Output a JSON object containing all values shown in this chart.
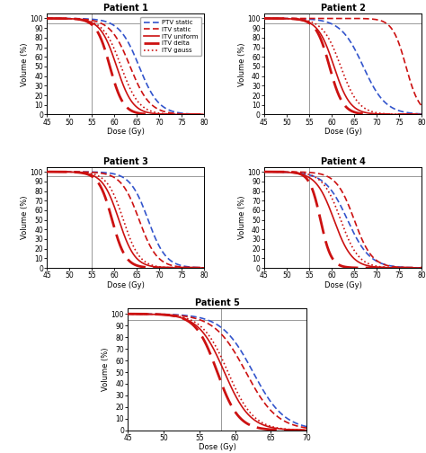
{
  "patients": [
    {
      "title": "Patient 1",
      "vline": 55,
      "hline": 95,
      "xlim": [
        45,
        80
      ],
      "xticks": [
        45,
        50,
        55,
        60,
        65,
        70,
        75,
        80
      ],
      "curves": [
        {
          "name": "PTV_static",
          "x50": 65.5,
          "steep": 2.2,
          "color": "#3355cc",
          "ls": "--",
          "lw": 1.2,
          "dashes": [
            4,
            2
          ]
        },
        {
          "name": "ITV_static",
          "x50": 63.5,
          "steep": 2.2,
          "color": "#cc1111",
          "ls": "--",
          "lw": 1.2,
          "dashes": [
            4,
            2
          ]
        },
        {
          "name": "ITV_uniform",
          "x50": 60.5,
          "steep": 1.8,
          "color": "#cc1111",
          "ls": "-",
          "lw": 1.2
        },
        {
          "name": "ITV_delta",
          "x50": 59.0,
          "steep": 1.5,
          "color": "#cc1111",
          "ls": "--",
          "lw": 2.0,
          "dashes": [
            8,
            3
          ]
        },
        {
          "name": "ITV_gauss",
          "x50": 61.5,
          "steep": 2.0,
          "color": "#cc1111",
          "ls": ":",
          "lw": 1.2
        }
      ]
    },
    {
      "title": "Patient 2",
      "vline": 55,
      "hline": 95,
      "xlim": [
        45,
        80
      ],
      "xticks": [
        45,
        50,
        55,
        60,
        65,
        70,
        75,
        80
      ],
      "curves": [
        {
          "name": "PTV_static",
          "x50": 67.0,
          "steep": 2.5,
          "color": "#3355cc",
          "ls": "--",
          "lw": 1.2,
          "dashes": [
            4,
            2
          ]
        },
        {
          "name": "ITV_static",
          "x50": 76.5,
          "steep": 1.5,
          "color": "#cc1111",
          "ls": "--",
          "lw": 1.2,
          "dashes": [
            4,
            2
          ]
        },
        {
          "name": "ITV_uniform",
          "x50": 60.5,
          "steep": 1.8,
          "color": "#cc1111",
          "ls": "-",
          "lw": 1.2
        },
        {
          "name": "ITV_delta",
          "x50": 59.5,
          "steep": 1.5,
          "color": "#cc1111",
          "ls": "--",
          "lw": 2.0,
          "dashes": [
            8,
            3
          ]
        },
        {
          "name": "ITV_gauss",
          "x50": 62.0,
          "steep": 2.0,
          "color": "#cc1111",
          "ls": ":",
          "lw": 1.2
        }
      ]
    },
    {
      "title": "Patient 3",
      "vline": 55,
      "hline": 95,
      "xlim": [
        45,
        80
      ],
      "xticks": [
        45,
        50,
        55,
        60,
        65,
        70,
        75,
        80
      ],
      "curves": [
        {
          "name": "PTV_static",
          "x50": 67.5,
          "steep": 2.0,
          "color": "#3355cc",
          "ls": "--",
          "lw": 1.2,
          "dashes": [
            4,
            2
          ]
        },
        {
          "name": "ITV_static",
          "x50": 65.5,
          "steep": 2.0,
          "color": "#cc1111",
          "ls": "--",
          "lw": 1.2,
          "dashes": [
            4,
            2
          ]
        },
        {
          "name": "ITV_uniform",
          "x50": 61.0,
          "steep": 1.8,
          "color": "#cc1111",
          "ls": "-",
          "lw": 1.2
        },
        {
          "name": "ITV_delta",
          "x50": 59.5,
          "steep": 1.5,
          "color": "#cc1111",
          "ls": "--",
          "lw": 2.0,
          "dashes": [
            8,
            3
          ]
        },
        {
          "name": "ITV_gauss",
          "x50": 62.0,
          "steep": 1.8,
          "color": "#cc1111",
          "ls": ":",
          "lw": 1.2
        }
      ]
    },
    {
      "title": "Patient 4",
      "vline": 55,
      "hline": 95,
      "xlim": [
        45,
        80
      ],
      "xticks": [
        45,
        50,
        55,
        60,
        65,
        70,
        75,
        80
      ],
      "curves": [
        {
          "name": "PTV_static",
          "x50": 63.5,
          "steep": 2.5,
          "color": "#3355cc",
          "ls": "--",
          "lw": 1.2,
          "dashes": [
            4,
            2
          ]
        },
        {
          "name": "ITV_static",
          "x50": 65.0,
          "steep": 2.0,
          "color": "#cc1111",
          "ls": "--",
          "lw": 1.2,
          "dashes": [
            4,
            2
          ]
        },
        {
          "name": "ITV_uniform",
          "x50": 60.5,
          "steep": 2.0,
          "color": "#cc1111",
          "ls": "-",
          "lw": 1.2
        },
        {
          "name": "ITV_delta",
          "x50": 57.5,
          "steep": 1.2,
          "color": "#cc1111",
          "ls": "--",
          "lw": 2.0,
          "dashes": [
            8,
            3
          ]
        },
        {
          "name": "ITV_gauss",
          "x50": 62.0,
          "steep": 2.0,
          "color": "#cc1111",
          "ls": ":",
          "lw": 1.2
        }
      ]
    },
    {
      "title": "Patient 5",
      "vline": 58,
      "hline": 95,
      "xlim": [
        45,
        70
      ],
      "xticks": [
        45,
        50,
        55,
        60,
        65,
        70
      ],
      "curves": [
        {
          "name": "PTV_static",
          "x50": 62.5,
          "steep": 2.2,
          "color": "#3355cc",
          "ls": "--",
          "lw": 1.2,
          "dashes": [
            4,
            2
          ]
        },
        {
          "name": "ITV_static",
          "x50": 61.5,
          "steep": 2.2,
          "color": "#cc1111",
          "ls": "--",
          "lw": 1.2,
          "dashes": [
            4,
            2
          ]
        },
        {
          "name": "ITV_uniform",
          "x50": 58.5,
          "steep": 1.8,
          "color": "#cc1111",
          "ls": "-",
          "lw": 1.2
        },
        {
          "name": "ITV_delta",
          "x50": 57.5,
          "steep": 1.5,
          "color": "#cc1111",
          "ls": "--",
          "lw": 2.0,
          "dashes": [
            8,
            3
          ]
        },
        {
          "name": "ITV_gauss",
          "x50": 59.0,
          "steep": 1.8,
          "color": "#cc1111",
          "ls": ":",
          "lw": 1.2
        }
      ]
    }
  ],
  "legend_labels": [
    "PTV static",
    "ITV static",
    "ITV uniform",
    "ITV delta",
    "ITV gauss"
  ],
  "legend_colors": [
    "#3355cc",
    "#cc1111",
    "#cc1111",
    "#cc1111",
    "#cc1111"
  ],
  "legend_ls": [
    "--",
    "--",
    "-",
    "--",
    ":"
  ],
  "legend_lw": [
    1.2,
    1.2,
    1.2,
    2.0,
    1.2
  ],
  "legend_dashes": [
    [
      4,
      2
    ],
    [
      4,
      2
    ],
    null,
    [
      8,
      3
    ],
    null
  ],
  "xlabel": "Dose (Gy)",
  "ylabel": "Volume (%)",
  "yticks": [
    0,
    10,
    20,
    30,
    40,
    50,
    60,
    70,
    80,
    90,
    100
  ],
  "bg_color": "#ffffff"
}
